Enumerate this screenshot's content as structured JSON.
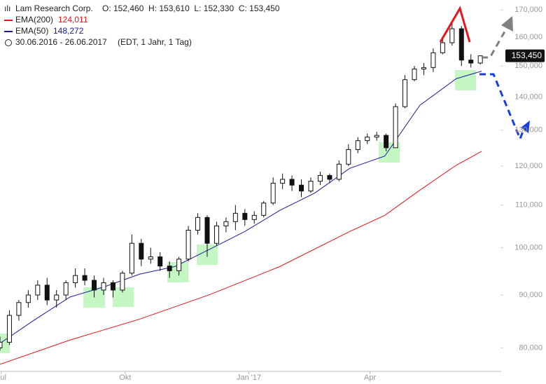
{
  "chart_data": {
    "type": "candlestick",
    "title": "Lam Research Corp.",
    "ohlc_text": "O: 152,460  H: 153,610  L: 152,330  C: 153,450",
    "date_range": "30.06.2016 - 26.06.2017",
    "period_text": "(EDT, 1 Jahr, 1 Tag)",
    "x": [
      0,
      7,
      14,
      21,
      28,
      35,
      42,
      49,
      56,
      63,
      70,
      77,
      84,
      91,
      98,
      105,
      112,
      119,
      126,
      133,
      140,
      147,
      154,
      161,
      168,
      175,
      182,
      189,
      196,
      203,
      210,
      217,
      224,
      231,
      238,
      245,
      252,
      259,
      266,
      273,
      280,
      287,
      294,
      301,
      308,
      315,
      322,
      329,
      336,
      343,
      350,
      357
    ],
    "open": [
      80,
      81,
      86,
      88.5,
      90,
      92,
      89,
      90,
      92.5,
      94,
      93,
      91,
      92.5,
      91,
      94.5,
      101,
      97.5,
      98,
      96,
      95,
      97.5,
      104,
      107,
      101,
      105,
      106,
      108,
      106.5,
      107.5,
      110.5,
      115.5,
      116.5,
      115,
      113.5,
      116,
      117.5,
      116.5,
      120.5,
      124.5,
      127,
      128,
      128.5,
      125,
      137,
      145.5,
      149,
      149.5,
      154.5,
      158,
      163,
      152,
      151
    ],
    "high": [
      82,
      87,
      89,
      91,
      93,
      93.5,
      91,
      93,
      95.5,
      95.5,
      94,
      93.5,
      93,
      95,
      103,
      102,
      100,
      99,
      97,
      98,
      105,
      108,
      107.5,
      106,
      107,
      110,
      109,
      108.5,
      111,
      117,
      118,
      117.5,
      116.5,
      117,
      118.5,
      118,
      121.5,
      126,
      128,
      129,
      129.5,
      129,
      138,
      147,
      150,
      151,
      156,
      160,
      166,
      164,
      154,
      153.61
    ],
    "low": [
      79.5,
      80.5,
      85,
      87.5,
      89,
      88,
      87.5,
      89,
      91.5,
      92,
      89.5,
      90,
      89.5,
      90.5,
      94,
      96,
      96.5,
      95,
      93.5,
      94,
      97,
      103,
      98,
      100.5,
      103.5,
      104,
      105,
      105.5,
      107,
      110,
      114,
      113.5,
      112,
      113,
      115,
      115.5,
      116,
      120,
      123.5,
      126,
      127,
      124,
      125,
      136.5,
      145,
      147,
      148,
      154,
      157,
      150,
      149.5,
      150.5
    ],
    "close": [
      81,
      86,
      88.5,
      90,
      92,
      89,
      90,
      92.5,
      94,
      93,
      91,
      92.5,
      91,
      94.5,
      101,
      97.5,
      98,
      96,
      95,
      97.5,
      104,
      107,
      101,
      105,
      106,
      108,
      106.5,
      107.5,
      110.5,
      115.5,
      116.5,
      115,
      113.5,
      116,
      117.5,
      116.5,
      120.5,
      124.5,
      127,
      128,
      128.5,
      125,
      137,
      145.5,
      149,
      149.5,
      154.5,
      158,
      163,
      152,
      151,
      153.45
    ],
    "series": [
      {
        "name": "EMA(200)",
        "last_label": "124,011",
        "color": "#e8141c",
        "x": [
          0,
          52,
          104,
          156,
          208,
          260,
          286,
          312,
          339,
          358
        ],
        "values": [
          77.1,
          81.4,
          85.3,
          90.1,
          95.9,
          103.7,
          107.5,
          113.7,
          120.2,
          124.0
        ]
      },
      {
        "name": "EMA(50)",
        "last_label": "148,272",
        "color": "#1a1a9c",
        "x": [
          0,
          26,
          52,
          78,
          104,
          130,
          156,
          182,
          208,
          234,
          260,
          286,
          312,
          339,
          358
        ],
        "values": [
          80.8,
          85.2,
          89.6,
          91.7,
          94.3,
          95.9,
          99.7,
          103.7,
          108.7,
          113.0,
          119.4,
          122.7,
          137.4,
          145.8,
          148.3
        ]
      }
    ],
    "last_price": {
      "value": 153.45,
      "label": "153,450"
    },
    "log_scale": true,
    "xlim": [
      0,
      372
    ],
    "ylim": [
      75.9,
      173.8
    ],
    "xticks": [
      {
        "value": 1,
        "label": "Jul"
      },
      {
        "value": 93,
        "label": "Okt"
      },
      {
        "value": 185,
        "label": "Jan '17"
      },
      {
        "value": 275,
        "label": "Apr"
      }
    ],
    "yticks": [
      {
        "value": 80,
        "label": "80,000"
      },
      {
        "value": 90,
        "label": "90,000"
      },
      {
        "value": 100,
        "label": "100,000"
      },
      {
        "value": 110,
        "label": "110,000"
      },
      {
        "value": 120,
        "label": "120,000"
      },
      {
        "value": 130,
        "label": "130,000"
      },
      {
        "value": 140,
        "label": "140,000"
      },
      {
        "value": 150,
        "label": "150,000"
      },
      {
        "value": 160,
        "label": "160,000"
      },
      {
        "value": 170,
        "label": "170,000"
      }
    ]
  }
}
